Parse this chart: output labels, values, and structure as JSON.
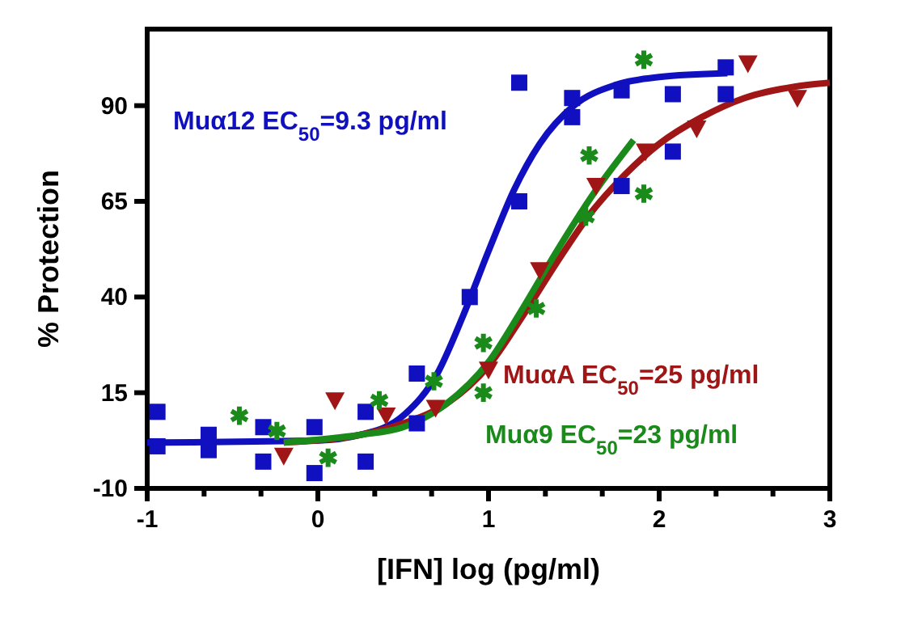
{
  "chart_data": {
    "type": "scatter",
    "xlabel": "[IFN] log (pg/ml)",
    "ylabel": "% Protection",
    "xlim": [
      -1,
      3
    ],
    "ylim": [
      -10,
      110
    ],
    "xticks": [
      -1,
      {
        "value": -0.6667,
        "label": null
      },
      {
        "value": -0.3333,
        "label": null
      },
      0,
      {
        "value": 0.3333,
        "label": null
      },
      {
        "value": 0.6667,
        "label": null
      },
      1,
      {
        "value": 1.3333,
        "label": null
      },
      {
        "value": 1.6667,
        "label": null
      },
      2,
      {
        "value": 2.3333,
        "label": null
      },
      {
        "value": 2.6667,
        "label": null
      },
      3
    ],
    "yticks": [
      -10,
      15,
      40,
      65,
      90
    ],
    "grid": false,
    "series": [
      {
        "name": "Muα12 EC$_{50}$=9.3 pg/ml",
        "color": "#1010c0",
        "marker": "square",
        "x": [
          -0.94,
          -0.94,
          -0.64,
          -0.64,
          -0.32,
          -0.32,
          -0.02,
          -0.02,
          0.28,
          0.28,
          0.58,
          0.58,
          0.89,
          1.18,
          1.18,
          1.49,
          1.49,
          1.78,
          1.78,
          2.08,
          2.08,
          2.39,
          2.39
        ],
        "values": [
          10,
          1,
          4,
          0,
          6,
          -3,
          6,
          -6,
          10,
          -3,
          7,
          20,
          40,
          96,
          65,
          92,
          87,
          94,
          69,
          93,
          78,
          100,
          93
        ]
      },
      {
        "name": "MuαA EC$_{50}$=25 pg/ml",
        "color": "#a01515",
        "marker": "triangle",
        "x": [
          -0.2,
          0.1,
          0.4,
          0.69,
          1.0,
          1.3,
          1.63,
          1.92,
          2.22,
          2.52,
          2.81
        ],
        "values": [
          -1.5,
          13,
          9,
          11,
          21,
          47,
          69,
          78,
          84,
          101,
          92
        ]
      },
      {
        "name": "Muα9 EC$_{50}$=23 pg/ml",
        "color": "#1a8a1a",
        "marker": "cross",
        "x": [
          -0.46,
          -0.24,
          0.06,
          0.36,
          0.68,
          0.97,
          0.97,
          1.28,
          1.57,
          1.59,
          1.91,
          1.91
        ],
        "values": [
          9,
          5,
          -2,
          13,
          18,
          28,
          15,
          37,
          61,
          77,
          67,
          102
        ]
      },
      {
        "type": "line",
        "color": "#1010c0",
        "marker": "none",
        "x": [
          -1,
          0,
          0.25,
          0.5,
          0.7,
          0.85,
          1.0,
          1.15,
          1.3,
          1.5,
          1.75,
          2,
          2.4
        ],
        "values": [
          2,
          2.5,
          4,
          9,
          20,
          35,
          52,
          68,
          80,
          90,
          95.5,
          97.5,
          98.5
        ]
      },
      {
        "type": "line",
        "color": "#a01515",
        "marker": "none",
        "x": [
          -0.2,
          0.25,
          0.5,
          0.75,
          1.0,
          1.2,
          1.4,
          1.6,
          1.8,
          2,
          2.25,
          2.5,
          2.8,
          3
        ],
        "values": [
          2,
          4,
          7,
          12,
          22,
          35,
          49,
          62,
          72,
          80,
          87,
          92,
          95,
          96
        ]
      },
      {
        "type": "line",
        "color": "#1a8a1a",
        "marker": "none",
        "x": [
          -0.2,
          0.25,
          0.5,
          0.75,
          1.0,
          1.2,
          1.4,
          1.6,
          1.85
        ],
        "values": [
          2,
          4,
          6,
          12,
          23,
          37,
          52,
          66,
          81
        ]
      }
    ]
  }
}
